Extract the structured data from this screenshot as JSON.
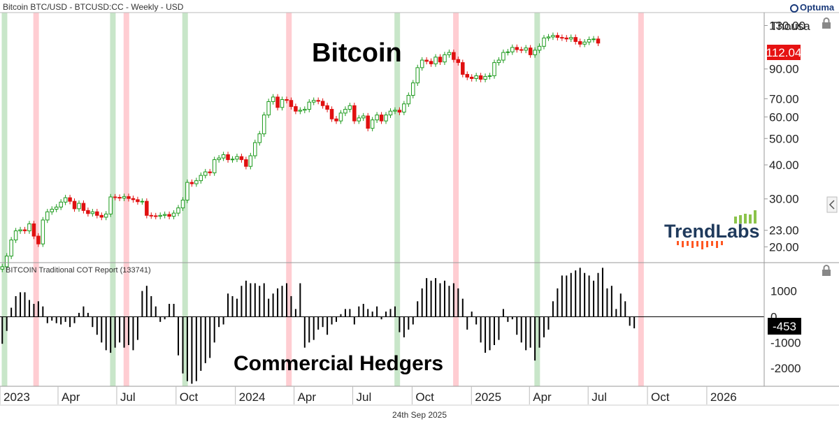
{
  "header": {
    "title": "Bitcoin BTC/USD - BTCUSD:CC - Weekly - USD",
    "brand": "Optuma"
  },
  "footer": {
    "date": "24th Sep 2025"
  },
  "watermark": {
    "brand": "TrendLabs"
  },
  "colors": {
    "up": "#1c9a1c",
    "down": "#e01010",
    "buy_band": "#c8e6c9",
    "sell_band": "#ffcdd2",
    "last_price_bg": "#e61212",
    "last_cot_bg": "#000000",
    "trendlabs_text": "#1f3a5c",
    "trendlabs_up": "#8bc34a",
    "trendlabs_down": "#ff5722"
  },
  "chart_data": [
    {
      "type": "candlestick",
      "title": "Bitcoin",
      "scale": "log",
      "ylabel": "Thousa",
      "ylim": [
        17.5,
        145
      ],
      "ytick_labels": [
        "130.00",
        "90.00",
        "70.00",
        "60.00",
        "50.00",
        "40.00",
        "30.00",
        "23.00",
        "20.00"
      ],
      "ytick_values": [
        130,
        90,
        70,
        60,
        50,
        40,
        30,
        23,
        20
      ],
      "last_price_label": "112.04",
      "last_price": 112.04,
      "weekly_close": [
        16.9,
        18.5,
        21.2,
        22.9,
        23.1,
        22.9,
        24.3,
        21.9,
        20.5,
        25.1,
        26.9,
        27.5,
        28.0,
        29.2,
        30.3,
        29.4,
        27.6,
        28.9,
        27.2,
        26.5,
        26.9,
        26.1,
        25.7,
        26.4,
        30.5,
        30.4,
        30.2,
        30.6,
        30.1,
        29.8,
        29.3,
        29.4,
        26.1,
        26.0,
        25.9,
        26.1,
        26.3,
        25.9,
        26.6,
        27.8,
        29.7,
        34.5,
        34.1,
        35.0,
        36.6,
        37.7,
        37.4,
        41.8,
        42.4,
        43.6,
        41.8,
        42.0,
        42.9,
        41.8,
        39.5,
        43.2,
        48.3,
        52.0,
        61.0,
        68.3,
        71.0,
        65.0,
        69.5,
        69.0,
        65.5,
        63.0,
        63.5,
        64.0,
        68.0,
        69.0,
        68.5,
        66.0,
        64.0,
        59.0,
        58.0,
        62.0,
        64.0,
        66.0,
        58.0,
        59.5,
        60.5,
        54.5,
        58.5,
        61.0,
        58.0,
        61.0,
        63.0,
        63.5,
        62.5,
        67.0,
        72.0,
        80.0,
        91.0,
        97.0,
        96.0,
        94.0,
        99.5,
        95.5,
        101.5,
        103.5,
        97.5,
        95.0,
        86.0,
        84.0,
        83.0,
        85.0,
        82.5,
        84.5,
        85.0,
        95.0,
        97.0,
        103.5,
        104.0,
        108.0,
        106.0,
        105.5,
        107.5,
        101.5,
        105.5,
        109.0,
        117.0,
        118.0,
        119.5,
        117.5,
        117.0,
        116.0,
        117.5,
        113.5,
        111.0,
        113.0,
        115.5,
        116.0,
        112.0
      ]
    },
    {
      "type": "bar",
      "title": "BITCOIN Traditional COT Report (133741)",
      "overlay_label": "Commercial Hedgers",
      "ylim": [
        -2700,
        2100
      ],
      "ytick_labels": [
        "1000",
        "0",
        "-1000",
        "-2000"
      ],
      "ytick_values": [
        1000,
        0,
        -1000,
        -2000
      ],
      "last_value_label": "-453",
      "last_value": -453,
      "weekly_net": [
        -1050,
        -550,
        350,
        800,
        950,
        950,
        650,
        500,
        600,
        400,
        -250,
        -150,
        -250,
        -300,
        -200,
        -400,
        -250,
        150,
        400,
        150,
        -400,
        -700,
        -1000,
        -1300,
        -1400,
        -1200,
        -1000,
        -1200,
        -1100,
        -1300,
        -900,
        1000,
        1200,
        800,
        400,
        -200,
        -100,
        500,
        500,
        -1500,
        -2200,
        -2500,
        -2600,
        -2500,
        -2100,
        -1800,
        -1600,
        -1000,
        -400,
        -300,
        900,
        800,
        700,
        1200,
        1400,
        1300,
        1300,
        1200,
        1300,
        700,
        900,
        1100,
        1200,
        1300,
        800,
        300,
        1300,
        -1200,
        -1000,
        -900,
        -500,
        -400,
        -700,
        -300,
        -200,
        100,
        300,
        300,
        -300,
        400,
        500,
        300,
        200,
        400,
        -100,
        200,
        300,
        400,
        -600,
        -800,
        -500,
        -300,
        600,
        1100,
        1500,
        1400,
        1500,
        1300,
        1400,
        1200,
        1300,
        1100,
        700,
        -500,
        200,
        -300,
        -1000,
        -1400,
        -1300,
        -1100,
        -900,
        300,
        -200,
        -100,
        -700,
        -1000,
        -1300,
        -1200,
        -1700,
        -1200,
        -800,
        -500,
        600,
        1100,
        1600,
        1600,
        1700,
        1800,
        1900,
        1700,
        1600,
        1400,
        1700,
        1900,
        1100,
        1200,
        300,
        900,
        600,
        -350,
        -450
      ]
    }
  ],
  "time_axis": {
    "labels": [
      "2023",
      "Apr",
      "Jul",
      "Oct",
      "2024",
      "Apr",
      "Jul",
      "Oct",
      "2025",
      "Apr",
      "Jul",
      "Oct",
      "2026"
    ],
    "start": "2023-01-01",
    "end": "2026-03-31",
    "tick_dates": [
      "2023-01-01",
      "2023-04-01",
      "2023-07-01",
      "2023-10-01",
      "2024-01-01",
      "2024-04-01",
      "2024-07-01",
      "2024-10-01",
      "2025-01-01",
      "2025-04-01",
      "2025-07-01",
      "2025-10-01",
      "2026-01-01"
    ]
  },
  "signal_bands": [
    {
      "type": "buy",
      "date": "2023-01-08"
    },
    {
      "type": "sell",
      "date": "2023-02-26"
    },
    {
      "type": "buy",
      "date": "2023-06-25"
    },
    {
      "type": "sell",
      "date": "2023-07-16"
    },
    {
      "type": "buy",
      "date": "2023-10-15"
    },
    {
      "type": "sell",
      "date": "2024-03-24"
    },
    {
      "type": "buy",
      "date": "2024-09-08"
    },
    {
      "type": "sell",
      "date": "2024-12-08"
    },
    {
      "type": "buy",
      "date": "2025-04-13"
    },
    {
      "type": "sell",
      "date": "2025-09-21"
    }
  ]
}
